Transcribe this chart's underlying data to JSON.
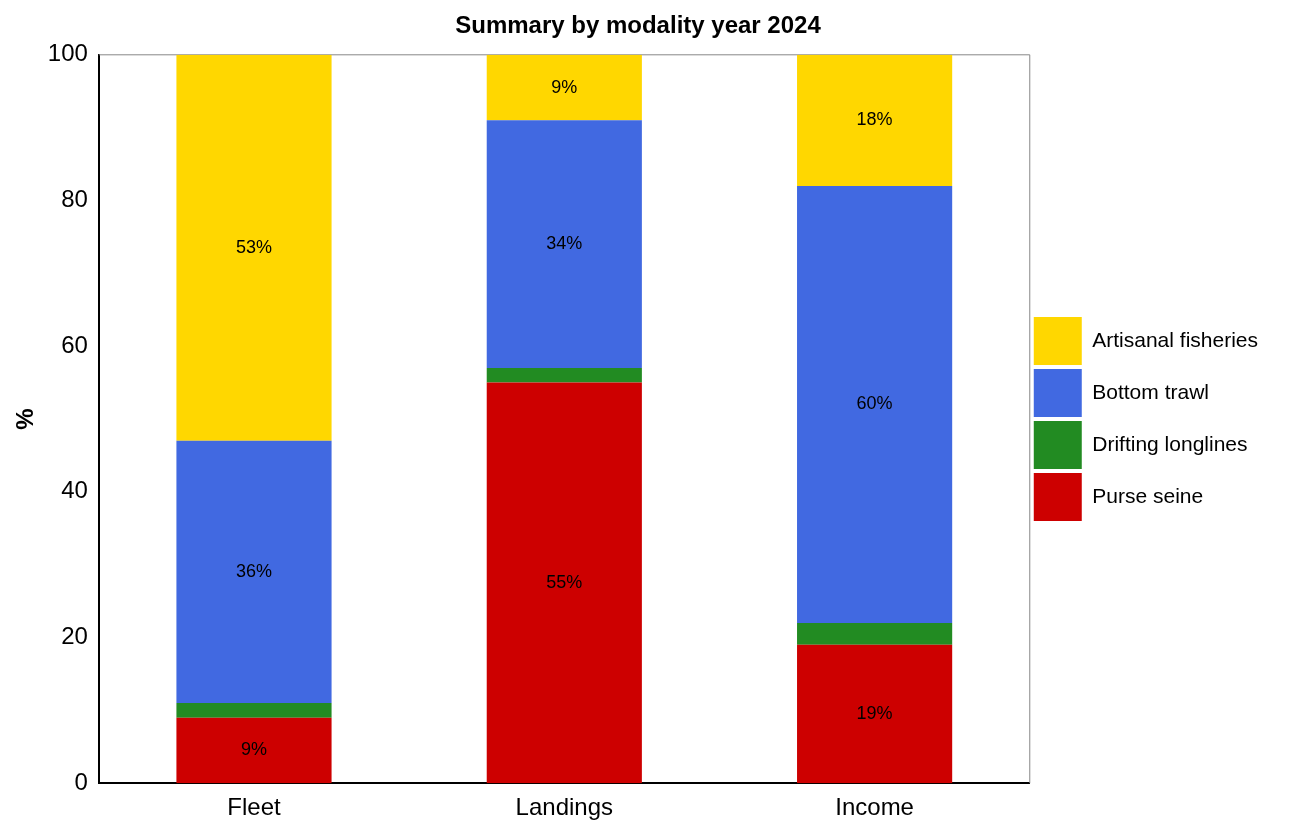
{
  "chart_data": {
    "type": "bar",
    "title": "Summary by modality year 2024",
    "ylabel": "%",
    "categories": [
      "Fleet",
      "Landings",
      "Income"
    ],
    "stacked": true,
    "ylim": [
      0,
      100
    ],
    "yticks": [
      0,
      20,
      40,
      60,
      80,
      100
    ],
    "grid": false,
    "legend": "right",
    "series": [
      {
        "name": "Purse seine",
        "color": "#cd0000",
        "values": [
          9,
          55,
          19
        ],
        "value_labels": [
          "9%",
          "55%",
          "19%"
        ]
      },
      {
        "name": "Drifting longlines",
        "color": "#228b22",
        "values": [
          2,
          2,
          3
        ],
        "value_labels": [
          null,
          null,
          null
        ]
      },
      {
        "name": "Bottom trawl",
        "color": "#4169e1",
        "values": [
          36,
          34,
          60
        ],
        "value_labels": [
          "36%",
          "34%",
          "60%"
        ]
      },
      {
        "name": "Artisanal fisheries",
        "color": "#ffd700",
        "values": [
          53,
          9,
          18
        ],
        "value_labels": [
          "53%",
          "9%",
          "18%"
        ]
      }
    ]
  }
}
